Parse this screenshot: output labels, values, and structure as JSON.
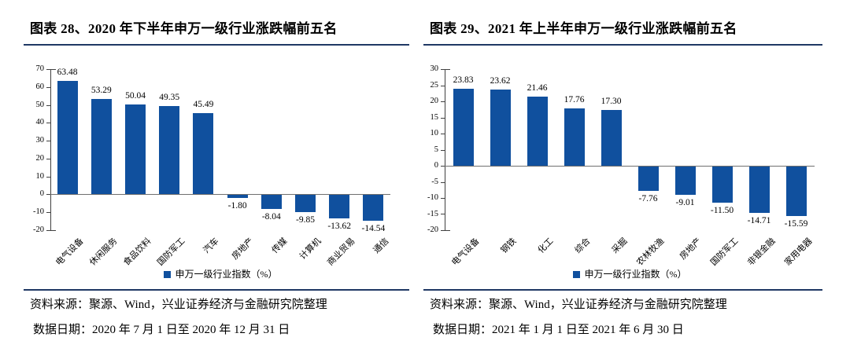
{
  "panels": [
    {
      "title": "图表 28、2020 年下半年申万一级行业涨跌幅前五名",
      "source_line": "资料来源：聚源、Wind，兴业证券经济与金融研究院整理",
      "date_line": "数据日期：2020 年 7 月 1 日至 2020 年 12 月 31 日"
    },
    {
      "title": "图表 29、2021 年上半年申万一级行业涨跌幅前五名",
      "source_line": "资料来源：聚源、Wind，兴业证券经济与金融研究院整理",
      "date_line": "数据日期：2021 年 1 月 1 日至 2021 年 6 月 30 日"
    }
  ],
  "chart_data": [
    {
      "type": "bar",
      "title": "图表 28、2020 年下半年申万一级行业涨跌幅前五名",
      "categories": [
        "电气设备",
        "休闲服务",
        "食品饮料",
        "国防军工",
        "汽车",
        "房地产",
        "传媒",
        "计算机",
        "商业贸易",
        "通信"
      ],
      "values": [
        63.48,
        53.29,
        50.04,
        49.35,
        45.49,
        -1.8,
        -8.04,
        -9.85,
        -13.62,
        -14.54
      ],
      "legend": "申万一级行业指数（%）",
      "xlabel": "",
      "ylabel": "",
      "ylim": [
        -20,
        70
      ],
      "ytick_step": 10,
      "grid": false,
      "legend_position": "bottom",
      "bar_color": "#10509e",
      "value_label_decimals": 2
    },
    {
      "type": "bar",
      "title": "图表 29、2021 年上半年申万一级行业涨跌幅前五名",
      "categories": [
        "电气设备",
        "钢铁",
        "化工",
        "综合",
        "采掘",
        "农林牧渔",
        "房地产",
        "国防军工",
        "非银金融",
        "家用电器"
      ],
      "values": [
        23.83,
        23.62,
        21.46,
        17.76,
        17.3,
        -7.76,
        -9.01,
        -11.5,
        -14.71,
        -15.59
      ],
      "legend": "申万一级行业指数（%）",
      "xlabel": "",
      "ylabel": "",
      "ylim": [
        -20,
        30
      ],
      "ytick_step": 5,
      "grid": false,
      "legend_position": "bottom",
      "bar_color": "#10509e",
      "value_label_decimals": 2
    }
  ],
  "colors": {
    "bar": "#10509e",
    "rule": "#1f3864",
    "axis": "#404040",
    "zero_line": "#6f6f6f",
    "text": "#000000",
    "background": "#ffffff"
  }
}
